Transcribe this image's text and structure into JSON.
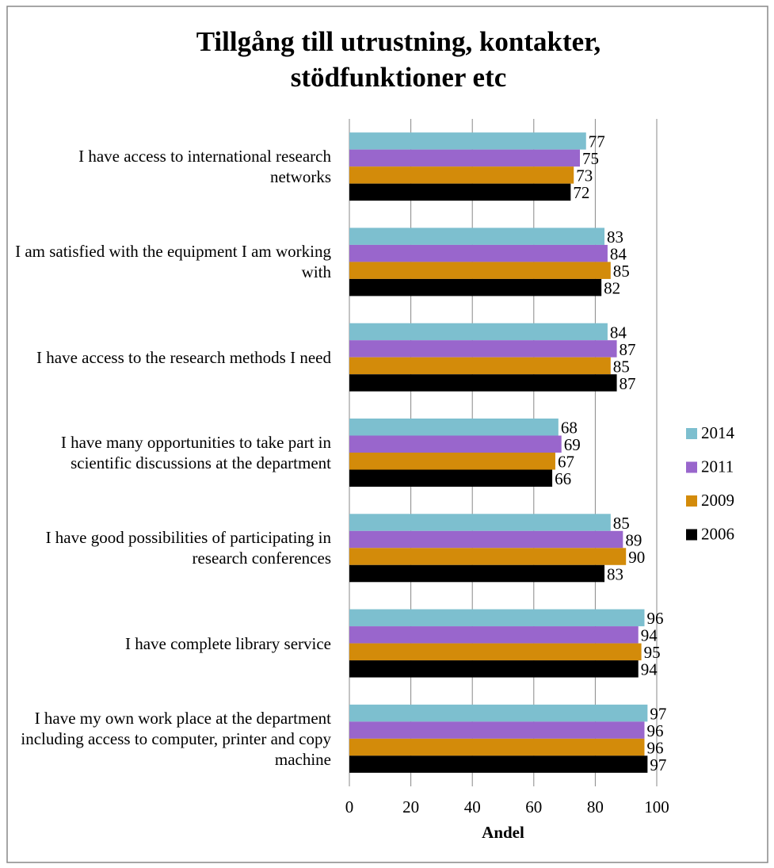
{
  "chart_data": {
    "type": "hbar",
    "title": "Tillgång till utrustning, kontakter, stödfunktioner etc",
    "x_label": "Andel",
    "categories": [
      "I have access to international research networks",
      "I am satisfied with the equipment I am working with",
      "I have access to the research methods I need",
      "I have many opportunities to take part in scientific discussions at the department",
      "I have good possibilities of participating in research conferences",
      "I have complete library service",
      "I have my own work place at the department including access to computer, printer and copy machine"
    ],
    "series": [
      {
        "name": "2014",
        "color": "#7dbfcf",
        "values": [
          77,
          83,
          84,
          68,
          85,
          96,
          97
        ]
      },
      {
        "name": "2011",
        "color": "#9966cc",
        "values": [
          75,
          84,
          87,
          69,
          89,
          94,
          96
        ]
      },
      {
        "name": "2009",
        "color": "#d38b0a",
        "values": [
          73,
          85,
          85,
          67,
          90,
          95,
          96
        ]
      },
      {
        "name": "2006",
        "color": "#000000",
        "values": [
          72,
          82,
          87,
          66,
          83,
          94,
          97
        ]
      }
    ],
    "xlim": [
      0,
      100
    ],
    "xticks": [
      0,
      20,
      40,
      60,
      80,
      100
    ],
    "grid": true,
    "legend": "right"
  }
}
